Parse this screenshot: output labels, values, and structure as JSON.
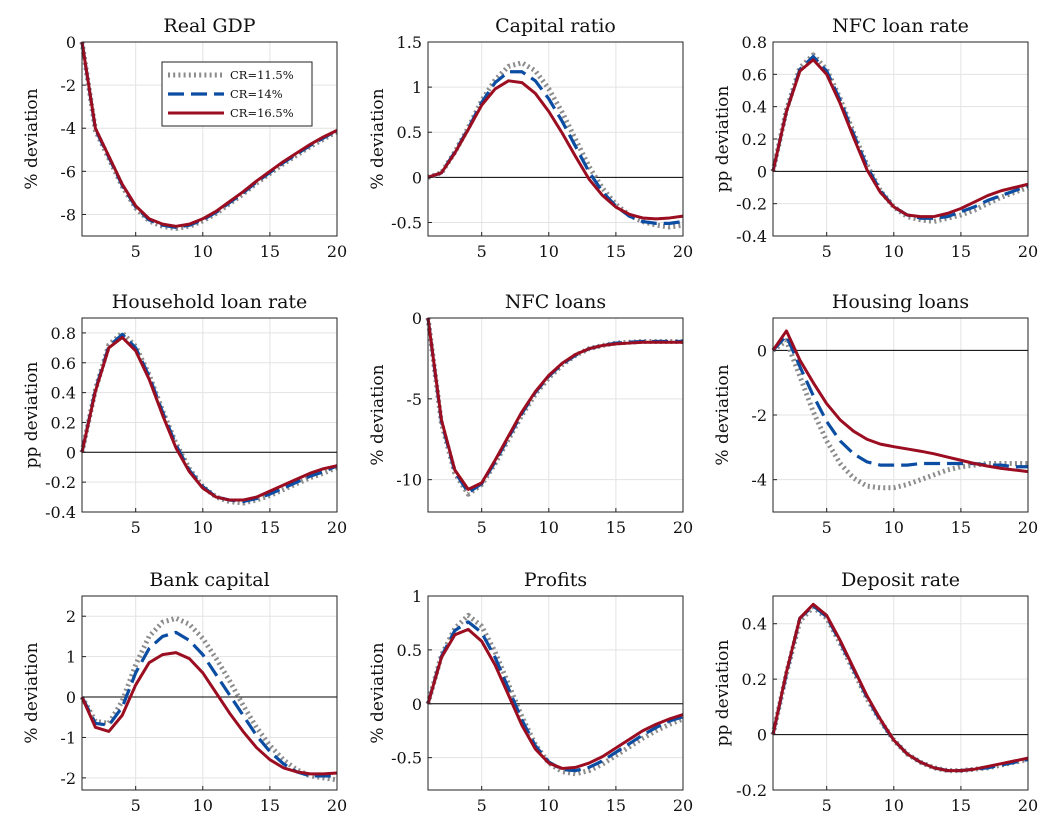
{
  "chart_data": [
    {
      "type": "line",
      "title": "Real GDP",
      "ylabel": "% deviation",
      "xlabel": "",
      "xlim": [
        1,
        20
      ],
      "ylim": [
        -9,
        0
      ],
      "xticks": [
        5,
        10,
        15,
        20
      ],
      "yticks": [
        0,
        -2,
        -4,
        -6,
        -8
      ],
      "ytick_labels": [
        "0",
        "-2",
        "-4",
        "-6",
        "-8"
      ],
      "zero_line": false,
      "grid": true,
      "legend": {
        "placement": "top-right",
        "entries": [
          "CR=11.5%",
          "CR=14%",
          "CR=16.5%"
        ]
      },
      "x": [
        1,
        2,
        3,
        4,
        5,
        6,
        7,
        8,
        9,
        10,
        11,
        12,
        13,
        14,
        15,
        16,
        17,
        18,
        19,
        20
      ],
      "series": [
        {
          "name": "CR=11.5%",
          "values": [
            0,
            -4.1,
            -5.4,
            -6.7,
            -7.7,
            -8.3,
            -8.55,
            -8.65,
            -8.55,
            -8.3,
            -7.95,
            -7.5,
            -7.05,
            -6.55,
            -6.1,
            -5.65,
            -5.25,
            -4.85,
            -4.5,
            -4.15
          ]
        },
        {
          "name": "CR=14%",
          "values": [
            0,
            -4.05,
            -5.35,
            -6.65,
            -7.65,
            -8.25,
            -8.5,
            -8.6,
            -8.5,
            -8.25,
            -7.9,
            -7.45,
            -7.0,
            -6.5,
            -6.05,
            -5.6,
            -5.2,
            -4.8,
            -4.45,
            -4.1
          ]
        },
        {
          "name": "CR=16.5%",
          "values": [
            0,
            -4.0,
            -5.3,
            -6.6,
            -7.6,
            -8.2,
            -8.45,
            -8.55,
            -8.45,
            -8.2,
            -7.85,
            -7.4,
            -6.95,
            -6.45,
            -6.0,
            -5.55,
            -5.15,
            -4.75,
            -4.4,
            -4.1
          ]
        }
      ]
    },
    {
      "type": "line",
      "title": "Capital ratio",
      "ylabel": "% deviation",
      "xlabel": "",
      "xlim": [
        1,
        20
      ],
      "ylim": [
        -0.65,
        1.5
      ],
      "xticks": [
        5,
        10,
        15,
        20
      ],
      "yticks": [
        1.5,
        1,
        0.5,
        0,
        -0.5
      ],
      "ytick_labels": [
        "1.5",
        "1",
        "0.5",
        "0",
        "-0.5"
      ],
      "zero_line": true,
      "grid": true,
      "x": [
        1,
        2,
        3,
        4,
        5,
        6,
        7,
        8,
        9,
        10,
        11,
        12,
        13,
        14,
        15,
        16,
        17,
        18,
        19,
        20
      ],
      "series": [
        {
          "name": "CR=11.5%",
          "values": [
            0,
            0.05,
            0.28,
            0.55,
            0.85,
            1.08,
            1.23,
            1.27,
            1.18,
            0.98,
            0.72,
            0.42,
            0.12,
            -0.12,
            -0.3,
            -0.42,
            -0.49,
            -0.53,
            -0.55,
            -0.53
          ]
        },
        {
          "name": "CR=14%",
          "values": [
            0,
            0.05,
            0.28,
            0.54,
            0.83,
            1.05,
            1.17,
            1.17,
            1.07,
            0.87,
            0.62,
            0.34,
            0.06,
            -0.16,
            -0.32,
            -0.43,
            -0.49,
            -0.51,
            -0.51,
            -0.49
          ]
        },
        {
          "name": "CR=16.5%",
          "values": [
            0,
            0.05,
            0.27,
            0.53,
            0.8,
            0.98,
            1.07,
            1.05,
            0.93,
            0.73,
            0.49,
            0.23,
            -0.02,
            -0.2,
            -0.33,
            -0.41,
            -0.45,
            -0.46,
            -0.45,
            -0.43
          ]
        }
      ]
    },
    {
      "type": "line",
      "title": "NFC loan rate",
      "ylabel": "pp deviation",
      "xlabel": "",
      "xlim": [
        1,
        20
      ],
      "ylim": [
        -0.4,
        0.8
      ],
      "xticks": [
        5,
        10,
        15,
        20
      ],
      "yticks": [
        0.8,
        0.6,
        0.4,
        0.2,
        0,
        -0.2,
        -0.4
      ],
      "ytick_labels": [
        "0.8",
        "0.6",
        "0.4",
        "0.2",
        "0",
        "-0.2",
        "-0.4"
      ],
      "zero_line": true,
      "grid": true,
      "x": [
        1,
        2,
        3,
        4,
        5,
        6,
        7,
        8,
        9,
        10,
        11,
        12,
        13,
        14,
        15,
        16,
        17,
        18,
        19,
        20
      ],
      "series": [
        {
          "name": "CR=11.5%",
          "values": [
            0,
            0.38,
            0.64,
            0.72,
            0.63,
            0.45,
            0.24,
            0.04,
            -0.12,
            -0.22,
            -0.28,
            -0.3,
            -0.31,
            -0.29,
            -0.27,
            -0.24,
            -0.2,
            -0.16,
            -0.13,
            -0.1
          ]
        },
        {
          "name": "CR=14%",
          "values": [
            0,
            0.37,
            0.63,
            0.71,
            0.62,
            0.44,
            0.23,
            0.03,
            -0.12,
            -0.22,
            -0.27,
            -0.29,
            -0.29,
            -0.28,
            -0.25,
            -0.22,
            -0.18,
            -0.15,
            -0.12,
            -0.09
          ]
        },
        {
          "name": "CR=16.5%",
          "values": [
            0,
            0.37,
            0.62,
            0.69,
            0.6,
            0.42,
            0.21,
            0.01,
            -0.13,
            -0.22,
            -0.27,
            -0.28,
            -0.28,
            -0.26,
            -0.23,
            -0.19,
            -0.15,
            -0.12,
            -0.1,
            -0.08
          ]
        }
      ]
    },
    {
      "type": "line",
      "title": "Household loan rate",
      "ylabel": "pp deviation",
      "xlabel": "",
      "xlim": [
        1,
        20
      ],
      "ylim": [
        -0.4,
        0.9
      ],
      "xticks": [
        5,
        10,
        15,
        20
      ],
      "yticks": [
        0.8,
        0.6,
        0.4,
        0.2,
        0,
        -0.2,
        -0.4
      ],
      "ytick_labels": [
        "0.8",
        "0.6",
        "0.4",
        "0.2",
        "0",
        "-0.2",
        "-0.4"
      ],
      "zero_line": true,
      "grid": true,
      "x": [
        1,
        2,
        3,
        4,
        5,
        6,
        7,
        8,
        9,
        10,
        11,
        12,
        13,
        14,
        15,
        16,
        17,
        18,
        19,
        20
      ],
      "series": [
        {
          "name": "CR=11.5%",
          "values": [
            0,
            0.42,
            0.72,
            0.8,
            0.71,
            0.52,
            0.28,
            0.06,
            -0.11,
            -0.23,
            -0.3,
            -0.33,
            -0.34,
            -0.32,
            -0.29,
            -0.25,
            -0.21,
            -0.17,
            -0.14,
            -0.1
          ]
        },
        {
          "name": "CR=14%",
          "values": [
            0,
            0.42,
            0.71,
            0.79,
            0.7,
            0.51,
            0.27,
            0.05,
            -0.12,
            -0.23,
            -0.3,
            -0.32,
            -0.33,
            -0.31,
            -0.28,
            -0.24,
            -0.2,
            -0.16,
            -0.13,
            -0.09
          ]
        },
        {
          "name": "CR=16.5%",
          "values": [
            0,
            0.41,
            0.7,
            0.77,
            0.68,
            0.49,
            0.25,
            0.03,
            -0.13,
            -0.24,
            -0.3,
            -0.32,
            -0.32,
            -0.3,
            -0.26,
            -0.22,
            -0.18,
            -0.14,
            -0.11,
            -0.09
          ]
        }
      ]
    },
    {
      "type": "line",
      "title": "NFC loans",
      "ylabel": "% deviation",
      "xlabel": "",
      "xlim": [
        1,
        20
      ],
      "ylim": [
        -12,
        0
      ],
      "xticks": [
        5,
        10,
        15,
        20
      ],
      "yticks": [
        0,
        -5,
        -10
      ],
      "ytick_labels": [
        "0",
        "-5",
        "-10"
      ],
      "zero_line": false,
      "grid": true,
      "x": [
        1,
        2,
        3,
        4,
        5,
        6,
        7,
        8,
        9,
        10,
        11,
        12,
        13,
        14,
        15,
        16,
        17,
        18,
        19,
        20
      ],
      "series": [
        {
          "name": "CR=11.5%",
          "values": [
            0,
            -6.5,
            -9.6,
            -10.9,
            -10.3,
            -9.0,
            -7.5,
            -6.0,
            -4.7,
            -3.7,
            -2.9,
            -2.3,
            -1.9,
            -1.7,
            -1.55,
            -1.5,
            -1.45,
            -1.45,
            -1.45,
            -1.45
          ]
        },
        {
          "name": "CR=14%",
          "values": [
            0,
            -6.4,
            -9.5,
            -10.8,
            -10.25,
            -8.9,
            -7.4,
            -5.9,
            -4.6,
            -3.6,
            -2.85,
            -2.3,
            -1.9,
            -1.7,
            -1.55,
            -1.5,
            -1.45,
            -1.45,
            -1.45,
            -1.45
          ]
        },
        {
          "name": "CR=16.5%",
          "values": [
            0,
            -6.3,
            -9.4,
            -10.6,
            -10.2,
            -8.8,
            -7.3,
            -5.8,
            -4.55,
            -3.55,
            -2.8,
            -2.25,
            -1.9,
            -1.7,
            -1.6,
            -1.55,
            -1.5,
            -1.5,
            -1.5,
            -1.5
          ]
        }
      ]
    },
    {
      "type": "line",
      "title": "Housing loans",
      "ylabel": "% deviation",
      "xlabel": "",
      "xlim": [
        1,
        20
      ],
      "ylim": [
        -5,
        1
      ],
      "xticks": [
        5,
        10,
        15,
        20
      ],
      "yticks": [
        0,
        -2,
        -4
      ],
      "ytick_labels": [
        "0",
        "-2",
        "-4"
      ],
      "zero_line": true,
      "grid": true,
      "x": [
        1,
        2,
        3,
        4,
        5,
        6,
        7,
        8,
        9,
        10,
        11,
        12,
        13,
        14,
        15,
        16,
        17,
        18,
        19,
        20
      ],
      "series": [
        {
          "name": "CR=11.5%",
          "values": [
            0,
            0.3,
            -0.8,
            -1.9,
            -2.8,
            -3.5,
            -3.95,
            -4.2,
            -4.25,
            -4.25,
            -4.15,
            -4.0,
            -3.85,
            -3.7,
            -3.6,
            -3.55,
            -3.5,
            -3.5,
            -3.5,
            -3.5
          ]
        },
        {
          "name": "CR=14%",
          "values": [
            0,
            0.45,
            -0.5,
            -1.4,
            -2.2,
            -2.8,
            -3.2,
            -3.45,
            -3.55,
            -3.55,
            -3.55,
            -3.5,
            -3.5,
            -3.5,
            -3.5,
            -3.5,
            -3.55,
            -3.55,
            -3.6,
            -3.6
          ]
        },
        {
          "name": "CR=16.5%",
          "values": [
            0,
            0.6,
            -0.3,
            -1.0,
            -1.65,
            -2.15,
            -2.5,
            -2.75,
            -2.9,
            -2.98,
            -3.05,
            -3.12,
            -3.2,
            -3.3,
            -3.4,
            -3.5,
            -3.58,
            -3.65,
            -3.7,
            -3.75
          ]
        }
      ]
    },
    {
      "type": "line",
      "title": "Bank capital",
      "ylabel": "% deviation",
      "xlabel": "",
      "xlim": [
        1,
        20
      ],
      "ylim": [
        -2.3,
        2.5
      ],
      "xticks": [
        5,
        10,
        15,
        20
      ],
      "yticks": [
        2,
        1,
        0,
        -1,
        -2
      ],
      "ytick_labels": [
        "2",
        "1",
        "0",
        "-1",
        "-2"
      ],
      "zero_line": true,
      "grid": true,
      "x": [
        1,
        2,
        3,
        4,
        5,
        6,
        7,
        8,
        9,
        10,
        11,
        12,
        13,
        14,
        15,
        16,
        17,
        18,
        19,
        20
      ],
      "series": [
        {
          "name": "CR=11.5%",
          "values": [
            0,
            -0.6,
            -0.65,
            -0.1,
            0.8,
            1.5,
            1.85,
            1.95,
            1.8,
            1.45,
            0.95,
            0.4,
            -0.2,
            -0.75,
            -1.2,
            -1.55,
            -1.8,
            -1.95,
            -2.0,
            -2.05
          ]
        },
        {
          "name": "CR=14%",
          "values": [
            0,
            -0.65,
            -0.7,
            -0.25,
            0.6,
            1.2,
            1.5,
            1.6,
            1.4,
            1.05,
            0.55,
            0.05,
            -0.45,
            -0.95,
            -1.35,
            -1.65,
            -1.85,
            -1.95,
            -1.95,
            -1.95
          ]
        },
        {
          "name": "CR=16.5%",
          "values": [
            0,
            -0.75,
            -0.85,
            -0.45,
            0.3,
            0.85,
            1.05,
            1.1,
            0.95,
            0.6,
            0.1,
            -0.4,
            -0.85,
            -1.25,
            -1.55,
            -1.75,
            -1.85,
            -1.9,
            -1.9,
            -1.88
          ]
        }
      ]
    },
    {
      "type": "line",
      "title": "Profits",
      "ylabel": "% deviation",
      "xlabel": "",
      "xlim": [
        1,
        20
      ],
      "ylim": [
        -0.8,
        1
      ],
      "xticks": [
        5,
        10,
        15,
        20
      ],
      "yticks": [
        1,
        0.5,
        0,
        -0.5
      ],
      "ytick_labels": [
        "1",
        "0.5",
        "0",
        "-0.5"
      ],
      "zero_line": true,
      "grid": true,
      "x": [
        1,
        2,
        3,
        4,
        5,
        6,
        7,
        8,
        9,
        10,
        11,
        12,
        13,
        14,
        15,
        16,
        17,
        18,
        19,
        20
      ],
      "series": [
        {
          "name": "CR=11.5%",
          "values": [
            0,
            0.45,
            0.7,
            0.82,
            0.72,
            0.48,
            0.18,
            -0.12,
            -0.38,
            -0.55,
            -0.63,
            -0.65,
            -0.62,
            -0.56,
            -0.48,
            -0.4,
            -0.32,
            -0.25,
            -0.19,
            -0.14
          ]
        },
        {
          "name": "CR=14%",
          "values": [
            0,
            0.44,
            0.68,
            0.76,
            0.66,
            0.43,
            0.14,
            -0.15,
            -0.39,
            -0.54,
            -0.61,
            -0.62,
            -0.59,
            -0.53,
            -0.45,
            -0.37,
            -0.29,
            -0.22,
            -0.16,
            -0.12
          ]
        },
        {
          "name": "CR=16.5%",
          "values": [
            0,
            0.43,
            0.64,
            0.69,
            0.58,
            0.36,
            0.08,
            -0.2,
            -0.42,
            -0.55,
            -0.6,
            -0.59,
            -0.55,
            -0.49,
            -0.41,
            -0.33,
            -0.25,
            -0.19,
            -0.14,
            -0.1
          ]
        }
      ]
    },
    {
      "type": "line",
      "title": "Deposit rate",
      "ylabel": "pp deviation",
      "xlabel": "",
      "xlim": [
        1,
        20
      ],
      "ylim": [
        -0.2,
        0.5
      ],
      "xticks": [
        5,
        10,
        15,
        20
      ],
      "yticks": [
        0.4,
        0.2,
        0,
        -0.2
      ],
      "ytick_labels": [
        "0.4",
        "0.2",
        "0",
        "-0.2"
      ],
      "zero_line": true,
      "grid": true,
      "x": [
        1,
        2,
        3,
        4,
        5,
        6,
        7,
        8,
        9,
        10,
        11,
        12,
        13,
        14,
        15,
        16,
        17,
        18,
        19,
        20
      ],
      "series": [
        {
          "name": "CR=11.5%",
          "values": [
            0,
            0.22,
            0.41,
            0.46,
            0.42,
            0.33,
            0.23,
            0.13,
            0.05,
            -0.02,
            -0.07,
            -0.1,
            -0.12,
            -0.13,
            -0.13,
            -0.125,
            -0.12,
            -0.11,
            -0.1,
            -0.09
          ]
        },
        {
          "name": "CR=14%",
          "values": [
            0,
            0.22,
            0.42,
            0.465,
            0.425,
            0.335,
            0.235,
            0.135,
            0.05,
            -0.02,
            -0.07,
            -0.1,
            -0.12,
            -0.13,
            -0.13,
            -0.125,
            -0.12,
            -0.11,
            -0.1,
            -0.09
          ]
        },
        {
          "name": "CR=16.5%",
          "values": [
            0,
            0.225,
            0.42,
            0.47,
            0.43,
            0.34,
            0.24,
            0.14,
            0.055,
            -0.02,
            -0.07,
            -0.1,
            -0.12,
            -0.13,
            -0.13,
            -0.125,
            -0.115,
            -0.105,
            -0.095,
            -0.085
          ]
        }
      ]
    }
  ],
  "series_colors": [
    "#8c8c8c",
    "#0b4da2",
    "#9b0d20"
  ]
}
